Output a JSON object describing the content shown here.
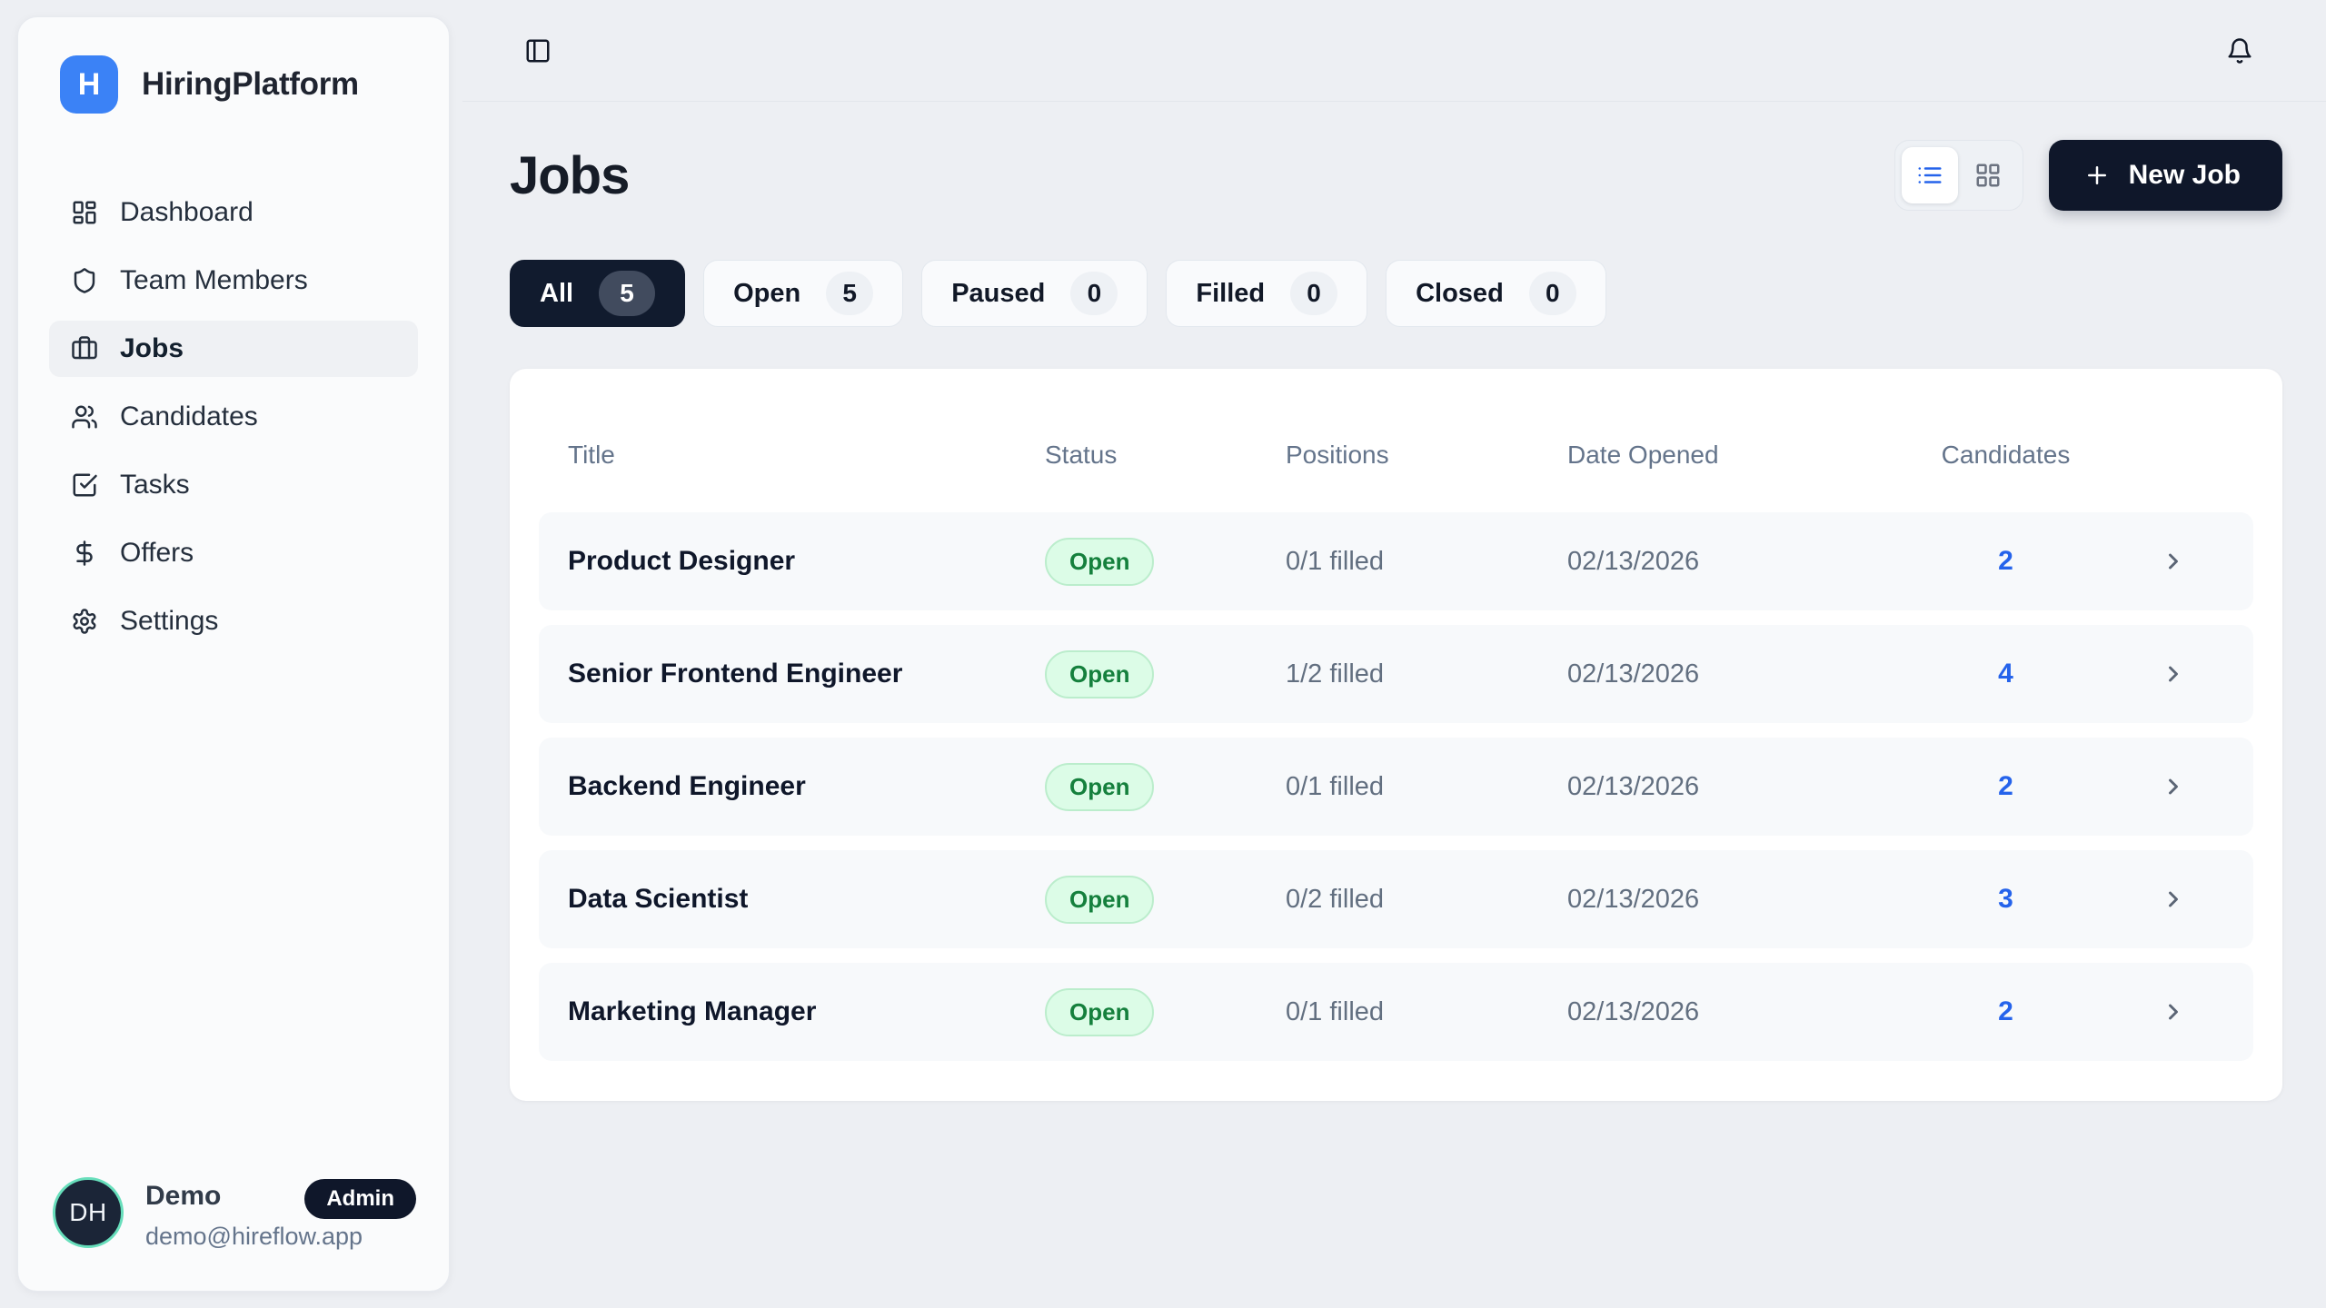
{
  "brand": {
    "initial": "H",
    "name": "HiringPlatform"
  },
  "topbar": {
    "icons": [
      "panel-left-icon",
      "bell-icon"
    ]
  },
  "sidebar": {
    "items": [
      {
        "label": "Dashboard",
        "icon": "layout-dashboard",
        "active": false
      },
      {
        "label": "Team Members",
        "icon": "shield",
        "active": false
      },
      {
        "label": "Jobs",
        "icon": "briefcase",
        "active": true
      },
      {
        "label": "Candidates",
        "icon": "users",
        "active": false
      },
      {
        "label": "Tasks",
        "icon": "check-square",
        "active": false
      },
      {
        "label": "Offers",
        "icon": "dollar-sign",
        "active": false
      },
      {
        "label": "Settings",
        "icon": "settings",
        "active": false
      }
    ]
  },
  "user": {
    "initials": "DH",
    "name": "Demo",
    "role": "Admin",
    "email": "demo@hireflow.app"
  },
  "page": {
    "title": "Jobs",
    "new_job_label": "New Job"
  },
  "view_toggle": {
    "active": "list",
    "options": [
      "list",
      "grid"
    ]
  },
  "filters": [
    {
      "label": "All",
      "count": "5",
      "active": true
    },
    {
      "label": "Open",
      "count": "5",
      "active": false
    },
    {
      "label": "Paused",
      "count": "0",
      "active": false
    },
    {
      "label": "Filled",
      "count": "0",
      "active": false
    },
    {
      "label": "Closed",
      "count": "0",
      "active": false
    }
  ],
  "table": {
    "headers": [
      "Title",
      "Status",
      "Positions",
      "Date Opened",
      "Candidates"
    ],
    "rows": [
      {
        "title": "Product Designer",
        "status": "Open",
        "positions": "0/1 filled",
        "date_opened": "02/13/2026",
        "candidates": "2"
      },
      {
        "title": "Senior Frontend Engineer",
        "status": "Open",
        "positions": "1/2 filled",
        "date_opened": "02/13/2026",
        "candidates": "4"
      },
      {
        "title": "Backend Engineer",
        "status": "Open",
        "positions": "0/1 filled",
        "date_opened": "02/13/2026",
        "candidates": "2"
      },
      {
        "title": "Data Scientist",
        "status": "Open",
        "positions": "0/2 filled",
        "date_opened": "02/13/2026",
        "candidates": "3"
      },
      {
        "title": "Marketing Manager",
        "status": "Open",
        "positions": "0/1 filled",
        "date_opened": "02/13/2026",
        "candidates": "2"
      }
    ]
  },
  "colors": {
    "accent_blue": "#3b82f6",
    "link_blue": "#2563eb",
    "navy": "#0f172a",
    "page_bg": "#edeff3",
    "card_bg": "#ffffff",
    "row_bg": "#f7f9fb",
    "status_open_bg": "#dcfce7",
    "status_open_text": "#15803d",
    "avatar_ring": "#67debb"
  }
}
